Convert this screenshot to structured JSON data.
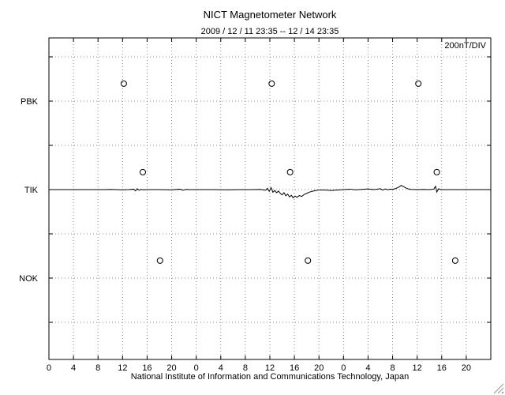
{
  "title": "NICT Magnetometer Network",
  "subtitle": "2009 / 12 / 11  23:35 -- 12 / 14  23:35",
  "scale_label": "200nT/DIV",
  "footer": "National Institute of Information and Communications Technology, Japan",
  "chart_data": {
    "type": "line",
    "title": "NICT Magnetometer Network",
    "subtitle": "2009 / 12 / 11  23:35 -- 12 / 14  23:35",
    "scale_per_division_nT": 200,
    "scale_label": "200nT/DIV",
    "stations": [
      "PBK",
      "TIK",
      "NOK"
    ],
    "days": 3,
    "x_hours_total": 72,
    "x_tick_step": 4,
    "x_day_tick_labels": [
      0,
      4,
      8,
      12,
      16,
      20
    ],
    "grid": true,
    "marker_offset_nT": 79,
    "midnight_markers": [
      {
        "station": "PBK",
        "hour": 12.2
      },
      {
        "station": "PBK",
        "hour": 36.3
      },
      {
        "station": "PBK",
        "hour": 60.2
      },
      {
        "station": "TIK",
        "hour": 15.3
      },
      {
        "station": "TIK",
        "hour": 39.3
      },
      {
        "station": "TIK",
        "hour": 63.2
      },
      {
        "station": "NOK",
        "hour": 18.1
      },
      {
        "station": "NOK",
        "hour": 42.2
      },
      {
        "station": "NOK",
        "hour": 66.2
      }
    ],
    "series": [
      {
        "name": "TIK",
        "baseline_station": "TIK",
        "unit": "nT",
        "points": [
          [
            0,
            0
          ],
          [
            2,
            0
          ],
          [
            4,
            0
          ],
          [
            6,
            0
          ],
          [
            8,
            0
          ],
          [
            9,
            0
          ],
          [
            10,
            1
          ],
          [
            11,
            0
          ],
          [
            12,
            -1
          ],
          [
            13,
            0
          ],
          [
            13.8,
            2
          ],
          [
            14.1,
            -6
          ],
          [
            14.4,
            4
          ],
          [
            14.7,
            -3
          ],
          [
            15,
            1
          ],
          [
            15.4,
            -1
          ],
          [
            16,
            0
          ],
          [
            18,
            0
          ],
          [
            20,
            -1
          ],
          [
            21.4,
            2
          ],
          [
            21.8,
            -3
          ],
          [
            22.3,
            1
          ],
          [
            23,
            0
          ],
          [
            25,
            0
          ],
          [
            27,
            0
          ],
          [
            29,
            -1
          ],
          [
            31,
            0
          ],
          [
            33,
            0
          ],
          [
            34.5,
            1
          ],
          [
            35.3,
            -3
          ],
          [
            35.6,
            6
          ],
          [
            35.9,
            -8
          ],
          [
            36.2,
            9
          ],
          [
            36.5,
            -12
          ],
          [
            36.8,
            -4
          ],
          [
            37.1,
            -14
          ],
          [
            37.4,
            -7
          ],
          [
            37.7,
            -17
          ],
          [
            38,
            -24
          ],
          [
            38.3,
            -14
          ],
          [
            38.6,
            -28
          ],
          [
            38.9,
            -20
          ],
          [
            39.2,
            -33
          ],
          [
            39.5,
            -26
          ],
          [
            39.8,
            -37
          ],
          [
            40.1,
            -29
          ],
          [
            40.4,
            -35
          ],
          [
            40.8,
            -27
          ],
          [
            41.2,
            -31
          ],
          [
            41.6,
            -22
          ],
          [
            42,
            -17
          ],
          [
            42.5,
            -11
          ],
          [
            43,
            -7
          ],
          [
            43.5,
            -4
          ],
          [
            44,
            -2
          ],
          [
            45,
            -2
          ],
          [
            46,
            -4
          ],
          [
            47,
            -2
          ],
          [
            48,
            0
          ],
          [
            49,
            2
          ],
          [
            50,
            -1
          ],
          [
            51,
            1
          ],
          [
            52,
            3
          ],
          [
            53,
            0
          ],
          [
            54,
            4
          ],
          [
            54.4,
            -2
          ],
          [
            54.8,
            3
          ],
          [
            55.2,
            -1
          ],
          [
            55.6,
            2
          ],
          [
            56,
            1
          ],
          [
            56.5,
            5
          ],
          [
            57,
            11
          ],
          [
            57.4,
            19
          ],
          [
            57.8,
            13
          ],
          [
            58.2,
            7
          ],
          [
            58.6,
            3
          ],
          [
            59,
            1
          ],
          [
            60,
            0
          ],
          [
            61,
            1
          ],
          [
            62,
            0
          ],
          [
            62.7,
            2
          ],
          [
            63,
            15
          ],
          [
            63.2,
            -11
          ],
          [
            63.5,
            4
          ],
          [
            63.8,
            0
          ],
          [
            65,
            0
          ],
          [
            67,
            0
          ],
          [
            69,
            0
          ],
          [
            71,
            0
          ],
          [
            72,
            0
          ]
        ]
      }
    ],
    "colors": {
      "trace": "#000000",
      "grid": "#888888",
      "border": "#000000"
    }
  }
}
